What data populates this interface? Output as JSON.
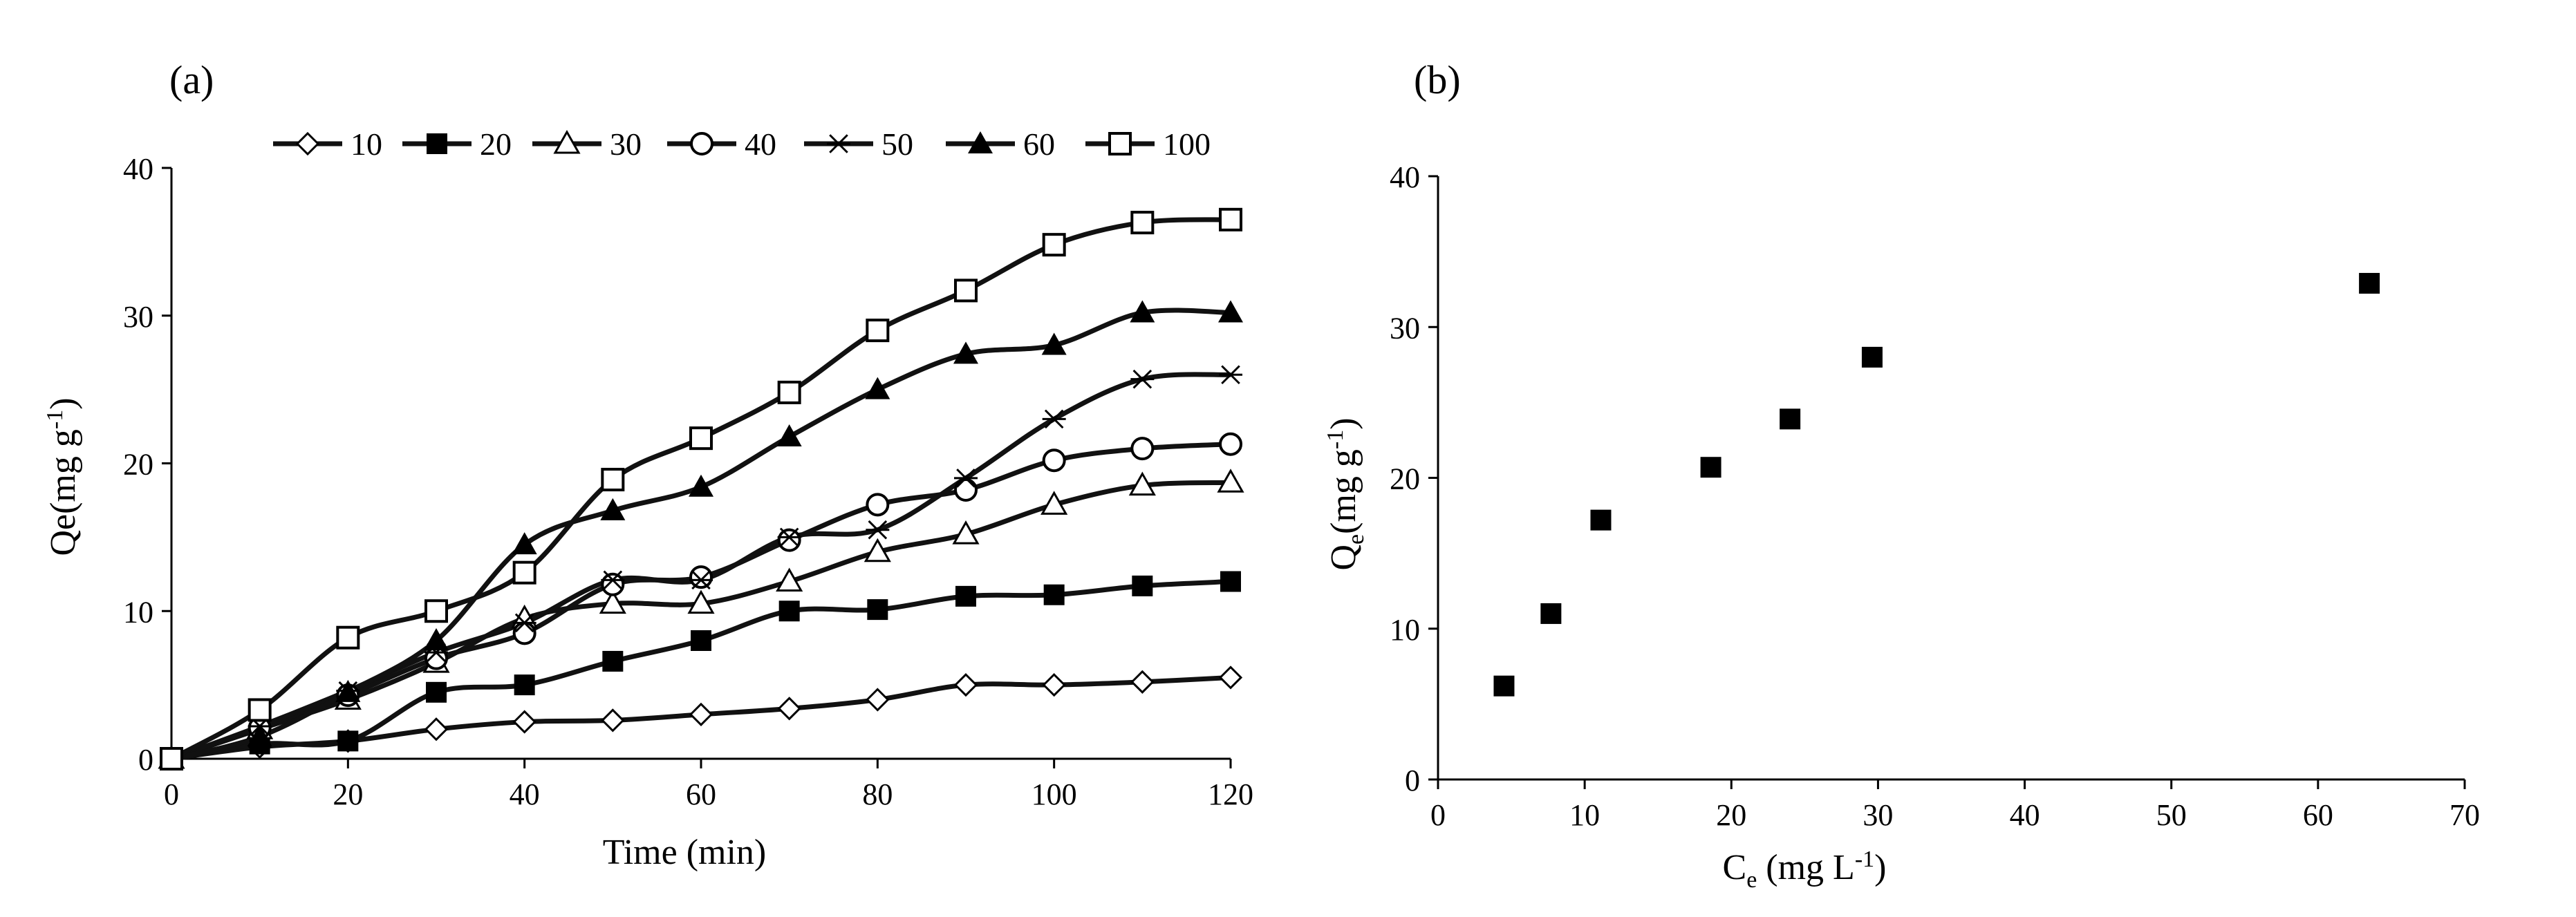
{
  "chart_data": [
    {
      "panel_label": "(a)",
      "type": "line",
      "xlabel": "Time (min)",
      "ylabel": "Qe(mg g",
      "ylabel_sup": "-1",
      "ylabel_end": ")",
      "xlim": [
        0,
        120
      ],
      "ylim": [
        0,
        40
      ],
      "xticks": [
        "0",
        "20",
        "40",
        "60",
        "80",
        "100",
        "120"
      ],
      "yticks": [
        "0",
        "10",
        "20",
        "30",
        "40"
      ],
      "x": [
        0,
        10,
        20,
        30,
        40,
        50,
        60,
        70,
        80,
        90,
        100,
        110,
        120
      ],
      "legend_position": "top",
      "series": [
        {
          "name": "10",
          "marker": "diamond-open",
          "values": [
            0,
            0.8,
            1.2,
            2.0,
            2.5,
            2.6,
            3.0,
            3.4,
            4.0,
            5.0,
            5.0,
            5.2,
            5.5
          ]
        },
        {
          "name": "20",
          "marker": "square-filled",
          "values": [
            0,
            1.0,
            1.2,
            4.5,
            5.0,
            6.6,
            8.0,
            10.0,
            10.1,
            11.0,
            11.1,
            11.7,
            12.0
          ]
        },
        {
          "name": "30",
          "marker": "triangle-open",
          "values": [
            0,
            2.0,
            4.0,
            6.5,
            9.5,
            10.5,
            10.5,
            12.0,
            14.0,
            15.2,
            17.2,
            18.5,
            18.7
          ]
        },
        {
          "name": "40",
          "marker": "circle-open",
          "values": [
            0,
            2.1,
            4.3,
            6.8,
            8.5,
            11.8,
            12.3,
            14.8,
            17.2,
            18.2,
            20.2,
            21.0,
            21.3
          ]
        },
        {
          "name": "50",
          "marker": "asterisk",
          "values": [
            0,
            2.2,
            4.6,
            7.2,
            9.2,
            12.1,
            12.1,
            15.0,
            15.5,
            19.0,
            23.0,
            25.7,
            26.0
          ]
        },
        {
          "name": "60",
          "marker": "triangle-filled",
          "values": [
            0,
            1.5,
            4.5,
            8.0,
            14.5,
            16.8,
            18.4,
            21.8,
            25.0,
            27.4,
            28.0,
            30.2,
            30.2
          ]
        },
        {
          "name": "100",
          "marker": "square-open",
          "values": [
            0,
            3.3,
            8.2,
            10.0,
            12.6,
            18.9,
            21.7,
            24.8,
            29.0,
            31.7,
            34.8,
            36.3,
            36.5
          ]
        }
      ]
    },
    {
      "panel_label": "(b)",
      "type": "scatter",
      "xlabel": "C",
      "xlabel_sub": "e",
      "xlabel_end": " (mg L",
      "xlabel_sup": "-1",
      "xlabel_close": ")",
      "ylabel": "Q",
      "ylabel_sub": "e",
      "ylabel_end": "(mg g",
      "ylabel_sup": "-1",
      "ylabel_close": ")",
      "xlim": [
        0,
        70
      ],
      "ylim": [
        0,
        40
      ],
      "xticks": [
        "0",
        "10",
        "20",
        "30",
        "40",
        "50",
        "60",
        "70"
      ],
      "yticks": [
        "0",
        "10",
        "20",
        "30",
        "40"
      ],
      "marker": "square-filled",
      "points": [
        {
          "x": 4.5,
          "y": 6.2
        },
        {
          "x": 7.7,
          "y": 11.0
        },
        {
          "x": 11.1,
          "y": 17.2
        },
        {
          "x": 18.6,
          "y": 20.7
        },
        {
          "x": 24.0,
          "y": 23.9
        },
        {
          "x": 29.6,
          "y": 28.0
        },
        {
          "x": 63.5,
          "y": 32.9
        }
      ]
    }
  ]
}
